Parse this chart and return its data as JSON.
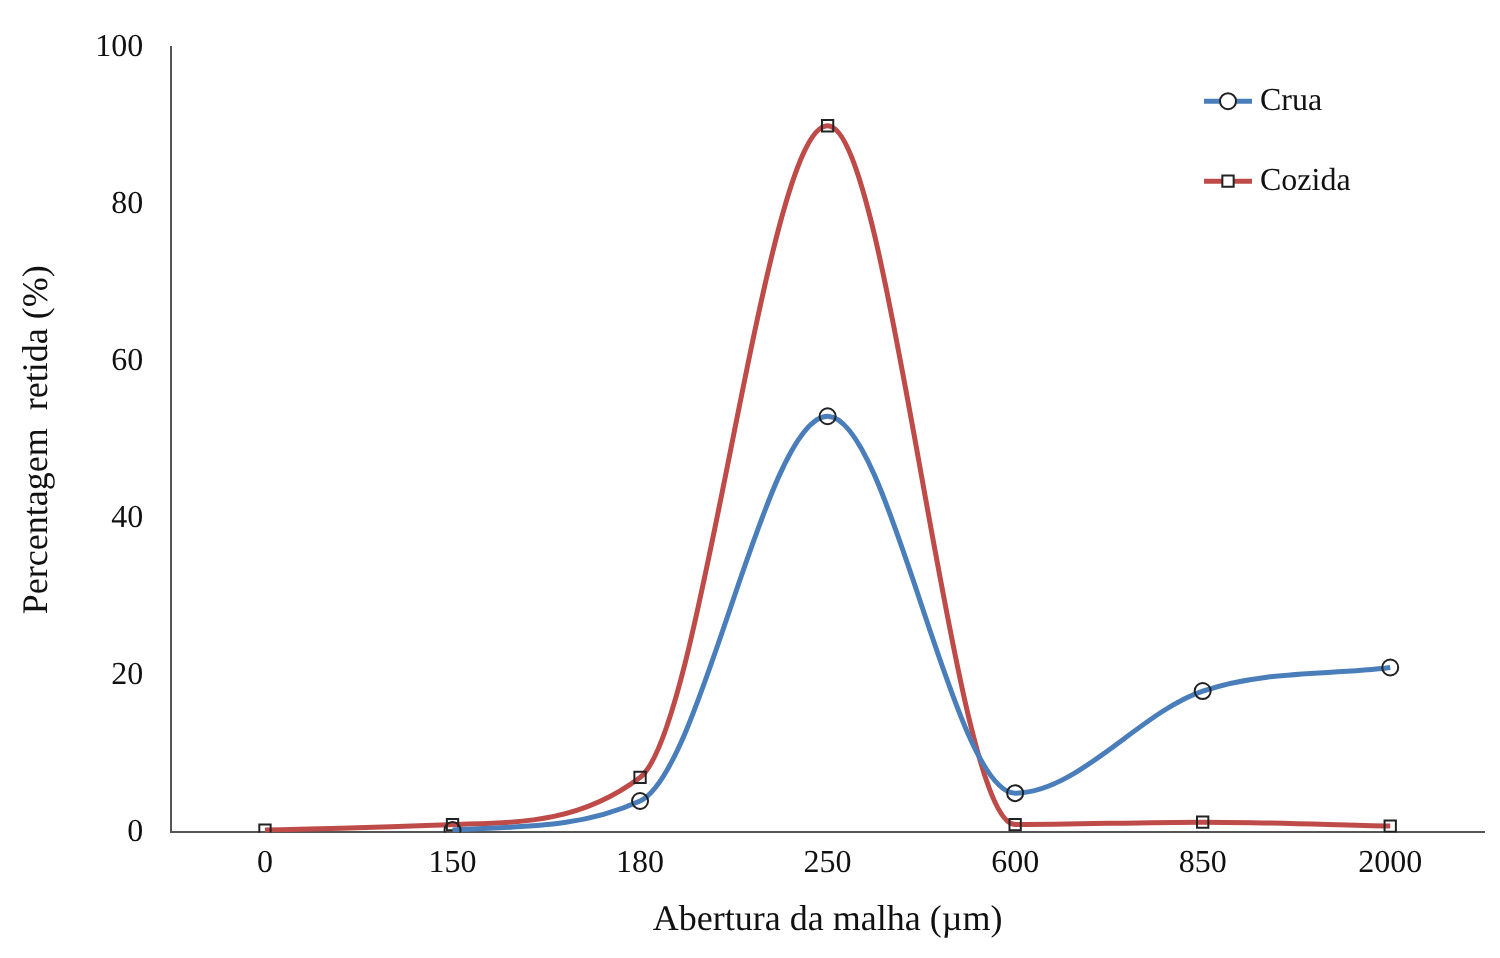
{
  "chart_data": {
    "type": "line",
    "xlabel": "Abertura da malha (µm)",
    "ylabel": "Percentagem  retida (%)",
    "categories": [
      "0",
      "150",
      "180",
      "250",
      "600",
      "850",
      "2000"
    ],
    "ylim": [
      0,
      100
    ],
    "yticks": [
      0,
      20,
      40,
      60,
      80,
      100
    ],
    "grid": false,
    "legend": "top right",
    "series": [
      {
        "name": "Crua",
        "color": "#4a7ebb",
        "marker": "circle",
        "values": [
          null,
          0.3,
          4,
          53,
          5,
          18,
          21
        ]
      },
      {
        "name": "Cozida",
        "color": "#be4b48",
        "marker": "square",
        "values": [
          0.3,
          1,
          7,
          90,
          1,
          1.3,
          0.8
        ]
      }
    ]
  }
}
